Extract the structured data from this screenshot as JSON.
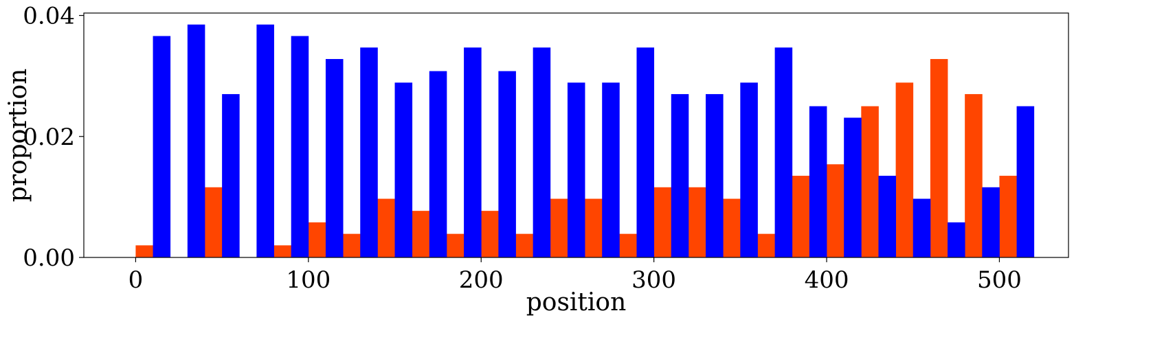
{
  "chart_data": {
    "type": "bar",
    "title": "",
    "xlabel": "position",
    "ylabel": "proportion",
    "xlim": [
      -30,
      540
    ],
    "ylim": [
      0,
      0.0404
    ],
    "xticks": [
      0,
      100,
      200,
      300,
      400,
      500
    ],
    "xtick_labels": [
      "0",
      "100",
      "200",
      "300",
      "400",
      "500"
    ],
    "yticks": [
      0,
      0.02,
      0.04
    ],
    "ytick_labels": [
      "0.00",
      "0.02",
      "0.04"
    ],
    "grid": false,
    "bin_width": 20,
    "bin_starts": [
      0,
      20,
      40,
      60,
      80,
      100,
      120,
      140,
      160,
      180,
      200,
      220,
      240,
      260,
      280,
      300,
      320,
      340,
      360,
      380,
      400,
      420,
      440,
      460,
      480,
      500
    ],
    "series": [
      {
        "color": "#ff4500",
        "values": [
          0.002,
          0.0,
          0.0116,
          0.0,
          0.002,
          0.0058,
          0.0039,
          0.0097,
          0.0077,
          0.0039,
          0.0077,
          0.0039,
          0.0097,
          0.0097,
          0.0039,
          0.0116,
          0.0116,
          0.0097,
          0.0039,
          0.0135,
          0.0154,
          0.025,
          0.0289,
          0.0328,
          0.027,
          0.0135
        ]
      },
      {
        "color": "#0000ff",
        "values": [
          0.0366,
          0.0385,
          0.027,
          0.0385,
          0.0366,
          0.0328,
          0.0347,
          0.0289,
          0.0308,
          0.0347,
          0.0308,
          0.0347,
          0.0289,
          0.0289,
          0.0347,
          0.027,
          0.027,
          0.0289,
          0.0347,
          0.025,
          0.0231,
          0.0135,
          0.0097,
          0.0058,
          0.0116,
          0.025
        ]
      }
    ]
  }
}
